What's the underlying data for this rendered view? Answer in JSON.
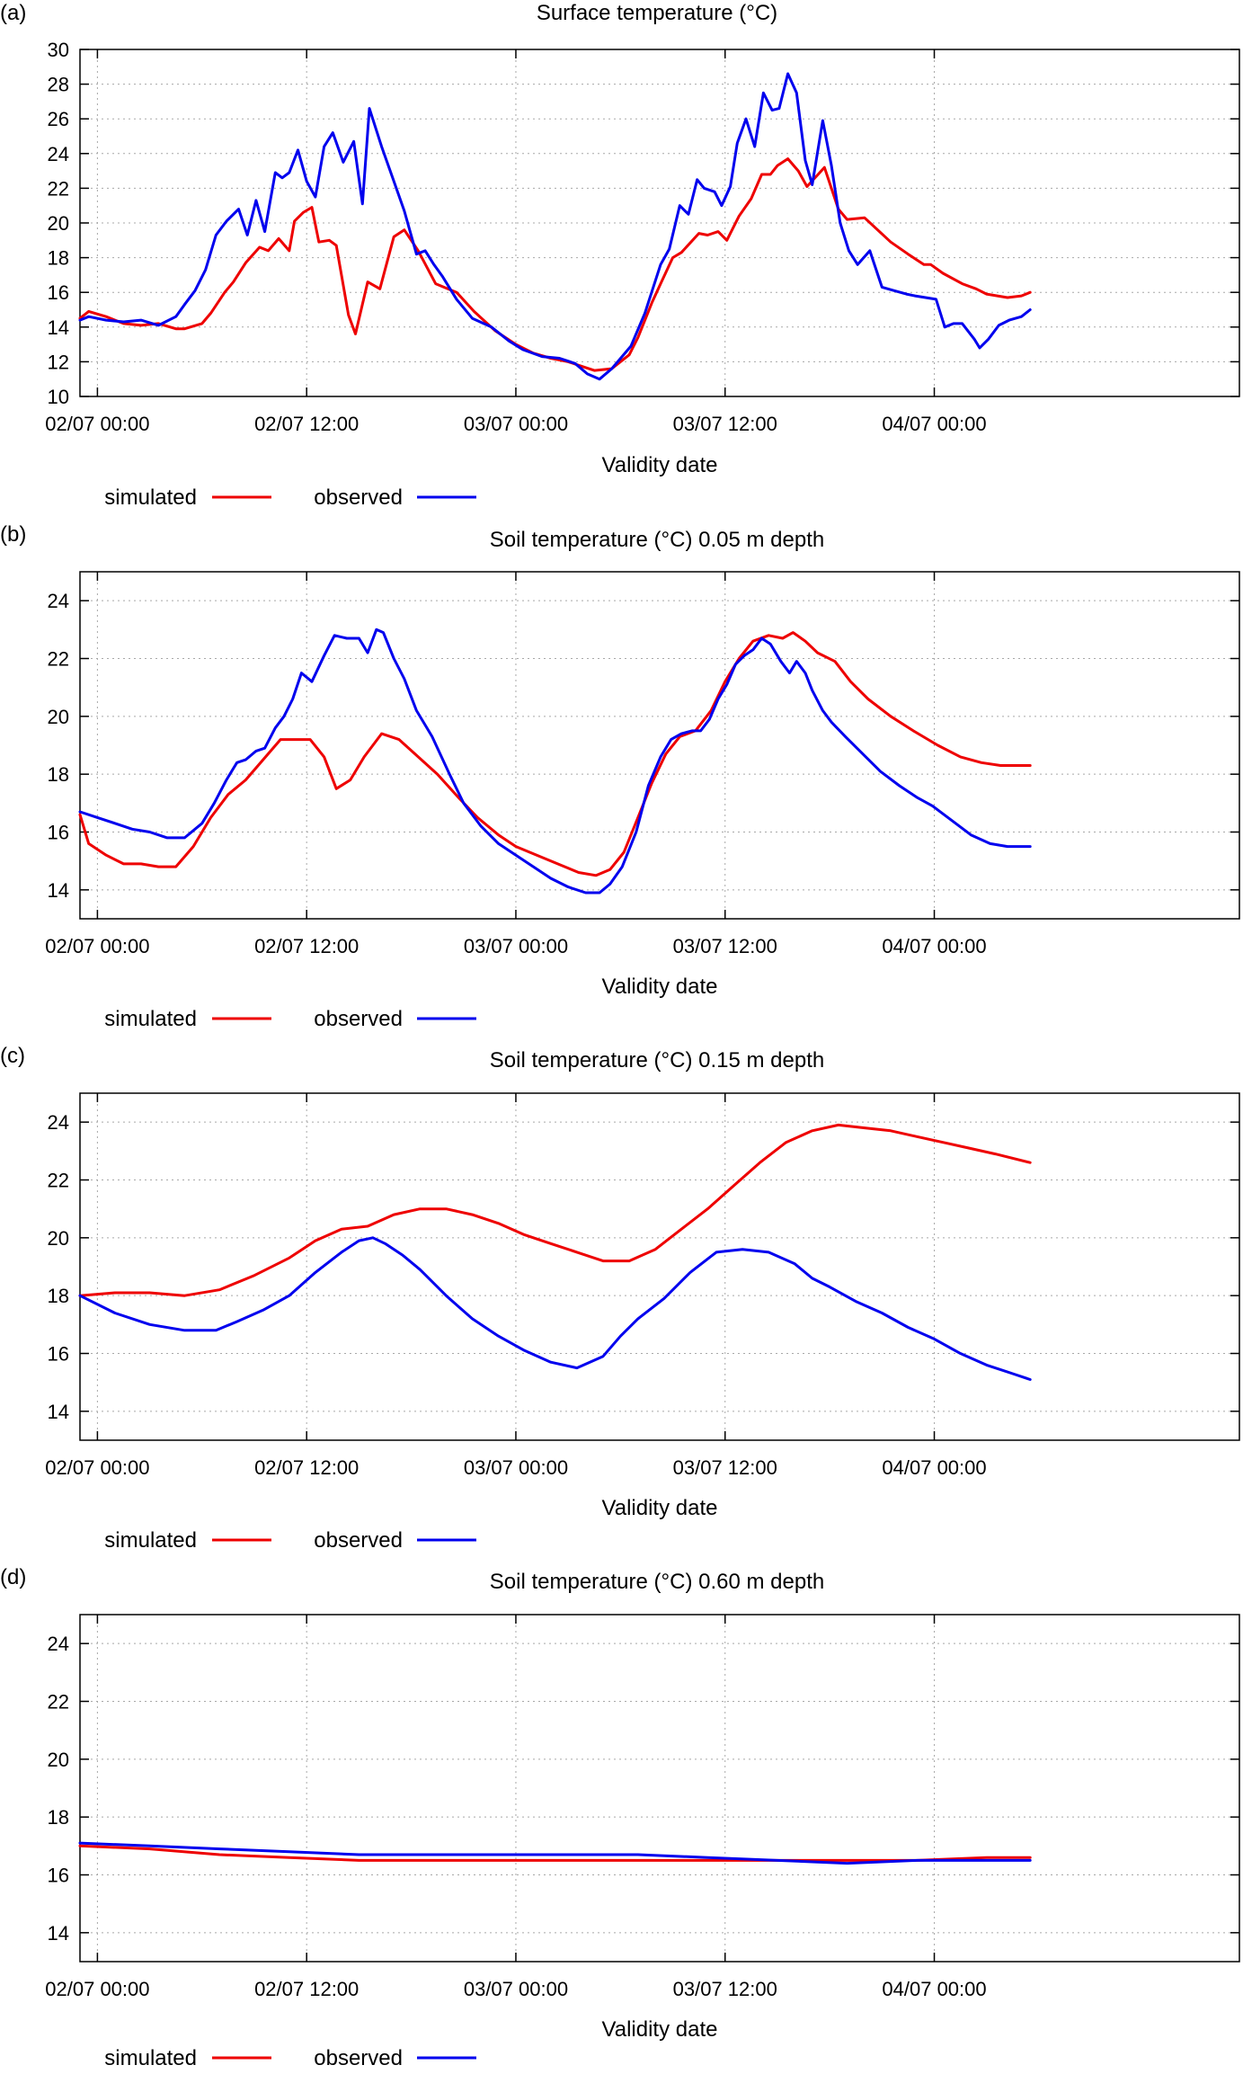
{
  "chart_data": [
    {
      "type": "line",
      "panel": "(a)",
      "title": "Surface temperature (°C)",
      "xlabel": "Validity date",
      "ylabel": "",
      "x_range_hours": [
        -1,
        65.5
      ],
      "ylim": [
        10,
        30
      ],
      "yticks": [
        10,
        12,
        14,
        16,
        18,
        20,
        22,
        24,
        26,
        28,
        30
      ],
      "xticks": [
        {
          "hour": 0,
          "label": "02/07 00:00"
        },
        {
          "hour": 12,
          "label": "02/07 12:00"
        },
        {
          "hour": 24,
          "label": "03/07 00:00"
        },
        {
          "hour": 36,
          "label": "03/07 12:00"
        },
        {
          "hour": 48,
          "label": "04/07 00:00"
        }
      ],
      "grid": true,
      "legend_position": "bottom-left",
      "series": [
        {
          "name": "simulated",
          "color": "#ee0000",
          "x": [
            -1,
            -0.5,
            0.5,
            1.5,
            2.5,
            3.5,
            4.5,
            5,
            6,
            6.5,
            7.3,
            7.8,
            8.5,
            9.3,
            9.8,
            10.4,
            11,
            11.3,
            11.8,
            12.3,
            12.7,
            13.3,
            13.7,
            14.4,
            14.8,
            15.5,
            16.2,
            17,
            17.6,
            18.4,
            19.4,
            20.6,
            21.6,
            22.8,
            24,
            25,
            26,
            27,
            27.6,
            28.5,
            29.5,
            30.5,
            31,
            31.8,
            32.3,
            33,
            33.5,
            34.5,
            35,
            35.6,
            36.1,
            36.8,
            37.5,
            38.1,
            38.6,
            39,
            39.6,
            40.2,
            40.7,
            41.7,
            42.5,
            43,
            44,
            45.5,
            46.5,
            47.4,
            47.8,
            48.5,
            49.6,
            50.4,
            51,
            52.2,
            53,
            53.5
          ],
          "y": [
            14.5,
            14.9,
            14.6,
            14.2,
            14.1,
            14.2,
            13.9,
            13.9,
            14.2,
            14.8,
            16.0,
            16.6,
            17.7,
            18.6,
            18.4,
            19.1,
            18.4,
            20.1,
            20.6,
            20.9,
            18.9,
            19.0,
            18.7,
            14.7,
            13.6,
            16.6,
            16.2,
            19.2,
            19.6,
            18.4,
            16.5,
            16.0,
            14.9,
            13.8,
            13.0,
            12.5,
            12.2,
            12.0,
            11.8,
            11.5,
            11.6,
            12.4,
            13.4,
            15.4,
            16.5,
            18.0,
            18.3,
            19.4,
            19.3,
            19.5,
            19.0,
            20.4,
            21.4,
            22.8,
            22.8,
            23.3,
            23.7,
            23.0,
            22.1,
            23.2,
            20.8,
            20.2,
            20.3,
            18.9,
            18.2,
            17.6,
            17.6,
            17.1,
            16.5,
            16.2,
            15.9,
            15.7,
            15.8,
            16.0
          ]
        },
        {
          "name": "observed",
          "color": "#0000ee",
          "x": [
            -1,
            -0.5,
            0.5,
            1.5,
            2.5,
            3.5,
            4.5,
            5,
            5.6,
            6.2,
            6.8,
            7.4,
            8.1,
            8.6,
            9.1,
            9.6,
            10.2,
            10.6,
            11,
            11.5,
            12,
            12.5,
            13,
            13.5,
            14.1,
            14.7,
            15.2,
            15.6,
            16.3,
            16.9,
            17.6,
            18.3,
            18.8,
            19.3,
            19.8,
            20.6,
            21.5,
            22.6,
            23.6,
            24.4,
            25.5,
            26.5,
            27.4,
            28.1,
            28.8,
            29.5,
            30.6,
            31.4,
            32.3,
            32.8,
            33.4,
            33.9,
            34.4,
            34.8,
            35.4,
            35.8,
            36.3,
            36.7,
            37.2,
            37.7,
            38.2,
            38.7,
            39.1,
            39.6,
            40.1,
            40.6,
            41,
            41.6,
            42.1,
            42.6,
            43.1,
            43.6,
            44.3,
            45,
            45.7,
            46.4,
            46.9,
            47.5,
            48.1,
            48.6,
            49.1,
            49.6,
            50.3,
            50.6,
            51.1,
            51.7,
            52.3,
            53,
            53.5
          ],
          "y": [
            14.4,
            14.6,
            14.4,
            14.3,
            14.4,
            14.1,
            14.6,
            15.3,
            16.1,
            17.3,
            19.3,
            20.1,
            20.8,
            19.3,
            21.3,
            19.5,
            22.9,
            22.6,
            22.9,
            24.2,
            22.4,
            21.5,
            24.4,
            25.2,
            23.5,
            24.7,
            21.1,
            26.6,
            24.4,
            22.7,
            20.7,
            18.2,
            18.4,
            17.6,
            16.9,
            15.6,
            14.5,
            14.0,
            13.2,
            12.7,
            12.3,
            12.2,
            11.9,
            11.3,
            11.0,
            11.6,
            12.9,
            14.8,
            17.6,
            18.5,
            21.0,
            20.5,
            22.5,
            22.0,
            21.8,
            21.0,
            22.1,
            24.6,
            26.0,
            24.4,
            27.5,
            26.5,
            26.6,
            28.6,
            27.5,
            23.6,
            22.2,
            25.9,
            23.3,
            20.0,
            18.4,
            17.6,
            18.4,
            16.3,
            16.1,
            15.9,
            15.8,
            15.7,
            15.6,
            14.0,
            14.2,
            14.2,
            13.3,
            12.8,
            13.3,
            14.1,
            14.4,
            14.6,
            15.0
          ]
        }
      ]
    },
    {
      "type": "line",
      "panel": "(b)",
      "title": "Soil temperature (°C) 0.05 m depth",
      "xlabel": "Validity date",
      "ylabel": "",
      "x_range_hours": [
        -1,
        65.5
      ],
      "ylim": [
        13,
        25
      ],
      "yticks": [
        14,
        16,
        18,
        20,
        22,
        24
      ],
      "xticks": [
        {
          "hour": 0,
          "label": "02/07 00:00"
        },
        {
          "hour": 12,
          "label": "02/07 12:00"
        },
        {
          "hour": 24,
          "label": "03/07 00:00"
        },
        {
          "hour": 36,
          "label": "03/07 12:00"
        },
        {
          "hour": 48,
          "label": "04/07 00:00"
        }
      ],
      "grid": true,
      "legend_position": "bottom-left",
      "series": [
        {
          "name": "simulated",
          "color": "#ee0000",
          "x": [
            -1,
            -0.5,
            0.5,
            1.5,
            2.5,
            3.5,
            4.5,
            5.5,
            6.5,
            7.5,
            8.5,
            9.5,
            10.5,
            11.3,
            12.2,
            13,
            13.7,
            14.5,
            15.3,
            16.3,
            17.3,
            18.4,
            19.5,
            20.7,
            21.8,
            23,
            24,
            25.2,
            26.4,
            27.6,
            28.6,
            29.4,
            30.2,
            31,
            31.8,
            32.6,
            33.4,
            34.3,
            35.2,
            36,
            36.8,
            37.6,
            38.5,
            39.3,
            39.9,
            40.6,
            41.3,
            42.3,
            43.2,
            44.2,
            45.5,
            46.8,
            48.2,
            49.5,
            50.7,
            51.8,
            52.7,
            53.5
          ],
          "y": [
            16.6,
            15.6,
            15.2,
            14.9,
            14.9,
            14.8,
            14.8,
            15.5,
            16.5,
            17.3,
            17.8,
            18.5,
            19.2,
            19.2,
            19.2,
            18.6,
            17.5,
            17.8,
            18.6,
            19.4,
            19.2,
            18.6,
            18.0,
            17.2,
            16.5,
            15.9,
            15.5,
            15.2,
            14.9,
            14.6,
            14.5,
            14.7,
            15.3,
            16.5,
            17.7,
            18.7,
            19.3,
            19.5,
            20.2,
            21.2,
            22.0,
            22.6,
            22.8,
            22.7,
            22.9,
            22.6,
            22.2,
            21.9,
            21.2,
            20.6,
            20.0,
            19.5,
            19.0,
            18.6,
            18.4,
            18.3,
            18.3,
            18.3
          ]
        },
        {
          "name": "observed",
          "color": "#0000ee",
          "x": [
            -1,
            0,
            1,
            2,
            3,
            4,
            5,
            6,
            6.7,
            7.4,
            8,
            8.5,
            9.1,
            9.6,
            10.2,
            10.7,
            11.2,
            11.7,
            12.3,
            13,
            13.6,
            14.3,
            15,
            15.5,
            16,
            16.4,
            17,
            17.6,
            18.3,
            19.2,
            20.2,
            21,
            22,
            23,
            24,
            25,
            26,
            27,
            28,
            28.8,
            29.4,
            30.1,
            30.9,
            31.6,
            32.3,
            32.9,
            33.5,
            34.1,
            34.6,
            35.1,
            35.6,
            36.1,
            36.6,
            37.1,
            37.6,
            38.1,
            38.6,
            39.2,
            39.7,
            40.1,
            40.6,
            41,
            41.6,
            42.1,
            42.9,
            43.9,
            44.9,
            46,
            47,
            47.9,
            49,
            50.1,
            51.2,
            52.2,
            53.5
          ],
          "y": [
            16.7,
            16.5,
            16.3,
            16.1,
            16.0,
            15.8,
            15.8,
            16.3,
            17.0,
            17.8,
            18.4,
            18.5,
            18.8,
            18.9,
            19.6,
            20.0,
            20.6,
            21.5,
            21.2,
            22.1,
            22.8,
            22.7,
            22.7,
            22.2,
            23.0,
            22.9,
            22.0,
            21.3,
            20.2,
            19.3,
            18.0,
            17.0,
            16.2,
            15.6,
            15.2,
            14.8,
            14.4,
            14.1,
            13.9,
            13.9,
            14.2,
            14.8,
            16.0,
            17.6,
            18.6,
            19.2,
            19.4,
            19.5,
            19.5,
            19.9,
            20.6,
            21.1,
            21.8,
            22.1,
            22.3,
            22.7,
            22.5,
            21.9,
            21.5,
            21.9,
            21.5,
            20.9,
            20.2,
            19.8,
            19.3,
            18.7,
            18.1,
            17.6,
            17.2,
            16.9,
            16.4,
            15.9,
            15.6,
            15.5,
            15.5
          ]
        }
      ]
    },
    {
      "type": "line",
      "panel": "(c)",
      "title": "Soil temperature (°C) 0.15 m depth",
      "xlabel": "Validity date",
      "ylabel": "",
      "x_range_hours": [
        -1,
        65.5
      ],
      "ylim": [
        13,
        25
      ],
      "yticks": [
        14,
        16,
        18,
        20,
        22,
        24
      ],
      "xticks": [
        {
          "hour": 0,
          "label": "02/07 00:00"
        },
        {
          "hour": 12,
          "label": "02/07 12:00"
        },
        {
          "hour": 24,
          "label": "03/07 00:00"
        },
        {
          "hour": 36,
          "label": "03/07 12:00"
        },
        {
          "hour": 48,
          "label": "04/07 00:00"
        }
      ],
      "grid": true,
      "legend_position": "bottom-left",
      "series": [
        {
          "name": "simulated",
          "color": "#ee0000",
          "x": [
            -1,
            1,
            3,
            5,
            7,
            9,
            11,
            12.5,
            14,
            15.5,
            17,
            18.5,
            20,
            21.5,
            23,
            24.5,
            26,
            27.5,
            29,
            30.5,
            32,
            33.5,
            35,
            36.5,
            38,
            39.5,
            41,
            42.5,
            44,
            45.5,
            47,
            48.5,
            50,
            51.5,
            53.5
          ],
          "y": [
            18.0,
            18.1,
            18.1,
            18.0,
            18.2,
            18.7,
            19.3,
            19.9,
            20.3,
            20.4,
            20.8,
            21.0,
            21.0,
            20.8,
            20.5,
            20.1,
            19.8,
            19.5,
            19.2,
            19.2,
            19.6,
            20.3,
            21.0,
            21.8,
            22.6,
            23.3,
            23.7,
            23.9,
            23.8,
            23.7,
            23.5,
            23.3,
            23.1,
            22.9,
            22.6
          ]
        },
        {
          "name": "observed",
          "color": "#0000ee",
          "x": [
            -1,
            1,
            3,
            5,
            6.8,
            8,
            9.5,
            11,
            12.5,
            14,
            15,
            15.8,
            16.5,
            17.5,
            18.5,
            20,
            21.5,
            23,
            24.5,
            26,
            27.5,
            29,
            30,
            31,
            32.5,
            34,
            35.5,
            37,
            38.5,
            40,
            41,
            42,
            43.5,
            45,
            46.5,
            48,
            49.5,
            51,
            52.5,
            53.5
          ],
          "y": [
            18.0,
            17.4,
            17.0,
            16.8,
            16.8,
            17.1,
            17.5,
            18.0,
            18.8,
            19.5,
            19.9,
            20.0,
            19.8,
            19.4,
            18.9,
            18.0,
            17.2,
            16.6,
            16.1,
            15.7,
            15.5,
            15.9,
            16.6,
            17.2,
            17.9,
            18.8,
            19.5,
            19.6,
            19.5,
            19.1,
            18.6,
            18.3,
            17.8,
            17.4,
            16.9,
            16.5,
            16.0,
            15.6,
            15.3,
            15.1
          ]
        }
      ]
    },
    {
      "type": "line",
      "panel": "(d)",
      "title": "Soil temperature (°C) 0.60 m depth",
      "xlabel": "Validity date",
      "ylabel": "",
      "x_range_hours": [
        -1,
        65.5
      ],
      "ylim": [
        13,
        25
      ],
      "yticks": [
        14,
        16,
        18,
        20,
        22,
        24
      ],
      "xticks": [
        {
          "hour": 0,
          "label": "02/07 00:00"
        },
        {
          "hour": 12,
          "label": "02/07 12:00"
        },
        {
          "hour": 24,
          "label": "03/07 00:00"
        },
        {
          "hour": 36,
          "label": "03/07 12:00"
        },
        {
          "hour": 48,
          "label": "04/07 00:00"
        }
      ],
      "grid": true,
      "legend_position": "bottom-left",
      "series": [
        {
          "name": "simulated",
          "color": "#ee0000",
          "x": [
            -1,
            3,
            7,
            11,
            15,
            19,
            23,
            27,
            31,
            35,
            39,
            43,
            47,
            51,
            53.5
          ],
          "y": [
            17.0,
            16.9,
            16.7,
            16.6,
            16.5,
            16.5,
            16.5,
            16.5,
            16.5,
            16.5,
            16.5,
            16.5,
            16.5,
            16.6,
            16.6
          ]
        },
        {
          "name": "observed",
          "color": "#0000ee",
          "x": [
            -1,
            3,
            7,
            11,
            15,
            19,
            23,
            27,
            31,
            35,
            39,
            43,
            47,
            51,
            53.5
          ],
          "y": [
            17.1,
            17.0,
            16.9,
            16.8,
            16.7,
            16.7,
            16.7,
            16.7,
            16.7,
            16.6,
            16.5,
            16.4,
            16.5,
            16.5,
            16.5
          ]
        }
      ]
    }
  ]
}
